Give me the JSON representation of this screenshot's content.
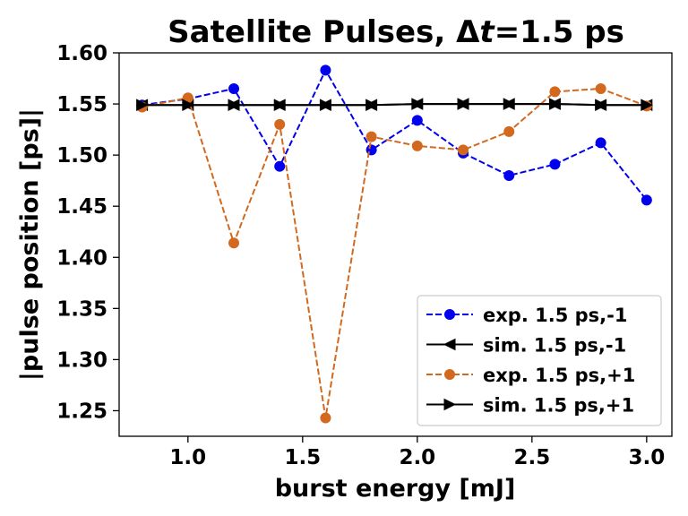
{
  "chart_data": {
    "type": "line",
    "title_prefix": "Satellite Pulses, ",
    "title_delta": "Δ",
    "title_var": "t",
    "title_suffix": "=1.5 ps",
    "xlabel": "burst energy [mJ]",
    "ylabel": "|pulse position [ps]|",
    "xlim": [
      0.7,
      3.11
    ],
    "ylim": [
      1.225,
      1.6
    ],
    "xticks": [
      1.0,
      1.5,
      2.0,
      2.5,
      3.0
    ],
    "xtick_labels": [
      "1.0",
      "1.5",
      "2.0",
      "2.5",
      "3.0"
    ],
    "yticks": [
      1.25,
      1.3,
      1.35,
      1.4,
      1.45,
      1.5,
      1.55,
      1.6
    ],
    "ytick_labels": [
      "1.25",
      "1.30",
      "1.35",
      "1.40",
      "1.45",
      "1.50",
      "1.55",
      "1.60"
    ],
    "grid": false,
    "legend_position": "lower-right",
    "x": [
      0.8,
      1.0,
      1.2,
      1.4,
      1.6,
      1.8,
      2.0,
      2.2,
      2.4,
      2.6,
      2.8,
      3.0
    ],
    "series": [
      {
        "name": "exp. 1.5 ps,-1",
        "color": "#0000ee",
        "linestyle": "dashed",
        "marker": "circle",
        "values": [
          1.549,
          1.555,
          1.565,
          1.489,
          1.583,
          1.505,
          1.534,
          1.502,
          1.48,
          1.491,
          1.512,
          1.456
        ]
      },
      {
        "name": "sim. 1.5 ps,-1",
        "color": "#000000",
        "linestyle": "solid",
        "marker": "triangle-left",
        "values": [
          1.549,
          1.549,
          1.549,
          1.549,
          1.549,
          1.549,
          1.55,
          1.55,
          1.55,
          1.55,
          1.549,
          1.549
        ]
      },
      {
        "name": "exp. 1.5 ps,+1",
        "color": "#d2691e",
        "linestyle": "dashed",
        "marker": "circle",
        "values": [
          1.547,
          1.556,
          1.414,
          1.53,
          1.243,
          1.518,
          1.509,
          1.505,
          1.523,
          1.562,
          1.565,
          1.548
        ]
      },
      {
        "name": "sim. 1.5 ps,+1",
        "color": "#000000",
        "linestyle": "solid",
        "marker": "triangle-right",
        "values": [
          1.549,
          1.549,
          1.549,
          1.549,
          1.549,
          1.549,
          1.55,
          1.55,
          1.55,
          1.55,
          1.549,
          1.549
        ]
      }
    ]
  }
}
